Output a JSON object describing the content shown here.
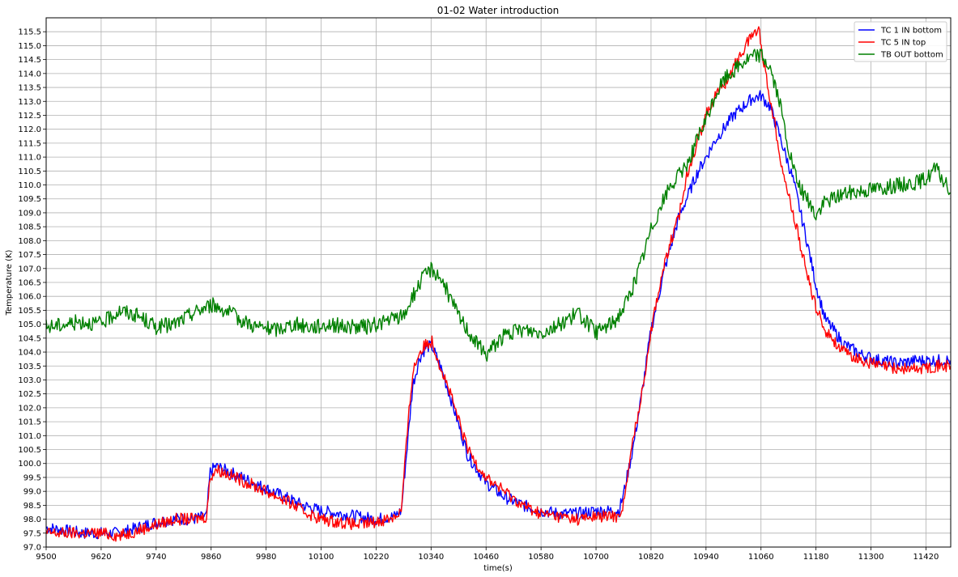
{
  "chart_data": {
    "type": "line",
    "title": "01-02 Water introduction",
    "xlabel": "time(s)",
    "ylabel": "Temperature (K)",
    "xlim": [
      9500,
      11474
    ],
    "ylim": [
      97.0,
      116.0
    ],
    "xticks": [
      9500,
      9620,
      9740,
      9860,
      9980,
      10100,
      10220,
      10340,
      10460,
      10580,
      10700,
      10820,
      10940,
      11060,
      11180,
      11300,
      11420
    ],
    "yticks": [
      97.0,
      97.5,
      98.0,
      98.5,
      99.0,
      99.5,
      100.0,
      100.5,
      101.0,
      101.5,
      102.0,
      102.5,
      103.0,
      103.5,
      104.0,
      104.5,
      105.0,
      105.5,
      106.0,
      106.5,
      107.0,
      107.5,
      108.0,
      108.5,
      109.0,
      109.5,
      110.0,
      110.5,
      111.0,
      111.5,
      112.0,
      112.5,
      113.0,
      113.5,
      114.0,
      114.5,
      115.0,
      115.5
    ],
    "grid": true,
    "legend_position": "top-right",
    "series": [
      {
        "name": "TC 1 IN bottom",
        "color": "#0000ff",
        "x": [
          9500,
          9540,
          9580,
          9620,
          9660,
          9700,
          9740,
          9780,
          9820,
          9850,
          9858,
          9870,
          9900,
          9940,
          9980,
          10020,
          10060,
          10100,
          10140,
          10180,
          10220,
          10260,
          10275,
          10290,
          10300,
          10315,
          10330,
          10342,
          10360,
          10380,
          10420,
          10460,
          10500,
          10540,
          10580,
          10620,
          10660,
          10700,
          10740,
          10750,
          10760,
          10780,
          10800,
          10820,
          10850,
          10880,
          10920,
          10960,
          11000,
          11040,
          11060,
          11080,
          11100,
          11130,
          11160,
          11180,
          11200,
          11240,
          11280,
          11320,
          11360,
          11400,
          11440,
          11474
        ],
        "values": [
          97.7,
          97.6,
          97.5,
          97.5,
          97.5,
          97.7,
          97.9,
          98.0,
          98.0,
          98.1,
          99.7,
          99.9,
          99.7,
          99.4,
          99.1,
          98.8,
          98.5,
          98.3,
          98.2,
          98.1,
          98.0,
          98.1,
          98.3,
          101.0,
          102.8,
          103.8,
          104.2,
          104.2,
          103.5,
          102.5,
          100.3,
          99.3,
          98.8,
          98.5,
          98.3,
          98.2,
          98.2,
          98.3,
          98.3,
          98.3,
          98.9,
          100.5,
          102.5,
          104.8,
          107.0,
          108.8,
          110.4,
          111.6,
          112.5,
          113.1,
          113.2,
          112.8,
          111.8,
          110.2,
          108.0,
          106.4,
          105.2,
          104.3,
          103.9,
          103.7,
          103.6,
          103.7,
          103.7,
          103.7
        ]
      },
      {
        "name": "TC 5 IN top",
        "color": "#ff0000",
        "x": [
          9500,
          9540,
          9580,
          9620,
          9660,
          9700,
          9740,
          9780,
          9820,
          9850,
          9858,
          9870,
          9900,
          9940,
          9980,
          10020,
          10060,
          10100,
          10140,
          10180,
          10220,
          10260,
          10275,
          10290,
          10300,
          10315,
          10330,
          10342,
          10360,
          10380,
          10420,
          10460,
          10500,
          10540,
          10580,
          10620,
          10660,
          10700,
          10740,
          10750,
          10760,
          10770,
          10780,
          10800,
          10820,
          10840,
          10860,
          10880,
          10900,
          10920,
          10940,
          10960,
          10980,
          11000,
          11020,
          11040,
          11055,
          11070,
          11090,
          11110,
          11140,
          11160,
          11180,
          11200,
          11240,
          11280,
          11320,
          11360,
          11400,
          11440,
          11474
        ],
        "values": [
          97.5,
          97.5,
          97.5,
          97.5,
          97.4,
          97.6,
          97.8,
          98.0,
          98.0,
          98.1,
          99.5,
          99.8,
          99.6,
          99.3,
          99.0,
          98.7,
          98.3,
          98.0,
          97.9,
          97.8,
          97.9,
          98.1,
          98.3,
          101.5,
          103.3,
          104.0,
          104.3,
          104.4,
          103.5,
          102.6,
          100.5,
          99.5,
          99.0,
          98.5,
          98.2,
          98.1,
          98.0,
          98.1,
          98.1,
          98.1,
          98.6,
          99.6,
          100.8,
          102.5,
          104.8,
          106.5,
          107.8,
          108.8,
          110.5,
          111.5,
          112.5,
          113.2,
          113.6,
          114.2,
          114.8,
          115.4,
          115.6,
          114.0,
          112.2,
          110.3,
          108.3,
          106.8,
          105.6,
          104.8,
          104.0,
          103.7,
          103.5,
          103.4,
          103.4,
          103.5,
          103.5
        ]
      },
      {
        "name": "TB OUT bottom",
        "color": "#008000",
        "x": [
          9500,
          9540,
          9580,
          9620,
          9660,
          9700,
          9740,
          9780,
          9820,
          9860,
          9880,
          9920,
          9960,
          10000,
          10040,
          10080,
          10120,
          10160,
          10200,
          10240,
          10280,
          10300,
          10320,
          10340,
          10360,
          10380,
          10400,
          10420,
          10440,
          10460,
          10480,
          10500,
          10540,
          10580,
          10620,
          10660,
          10700,
          10740,
          10760,
          10780,
          10800,
          10820,
          10840,
          10860,
          10880,
          10900,
          10920,
          10940,
          10960,
          10980,
          11000,
          11020,
          11040,
          11060,
          11080,
          11100,
          11120,
          11140,
          11160,
          11180,
          11200,
          11240,
          11280,
          11320,
          11360,
          11400,
          11420,
          11440,
          11460,
          11474
        ],
        "values": [
          104.9,
          105.0,
          105.1,
          105.0,
          105.5,
          105.3,
          104.9,
          105.0,
          105.4,
          105.7,
          105.6,
          105.2,
          104.9,
          104.8,
          105.0,
          104.9,
          105.0,
          104.9,
          104.9,
          105.1,
          105.3,
          106.0,
          106.6,
          107.0,
          106.7,
          106.0,
          105.3,
          104.8,
          104.3,
          103.9,
          104.3,
          104.6,
          104.8,
          104.7,
          105.0,
          105.4,
          104.7,
          105.1,
          105.6,
          106.3,
          107.3,
          108.4,
          109.2,
          109.9,
          110.3,
          110.8,
          111.6,
          112.3,
          113.2,
          113.8,
          114.1,
          114.4,
          114.6,
          114.7,
          114.2,
          113.0,
          111.3,
          110.0,
          109.5,
          108.9,
          109.4,
          109.7,
          109.8,
          109.9,
          110.0,
          110.1,
          110.2,
          110.6,
          110.1,
          109.7
        ]
      }
    ]
  }
}
